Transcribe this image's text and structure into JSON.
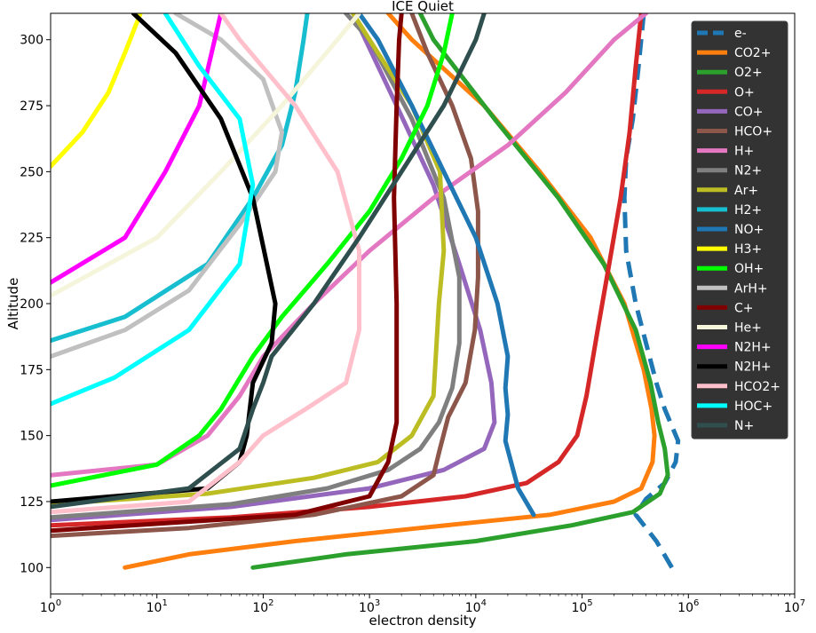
{
  "chart_data": {
    "type": "line",
    "title": "ICE Quiet",
    "xlabel": "electron density",
    "ylabel": "Altitude",
    "xscale": "log",
    "xlim": [
      1,
      10000000
    ],
    "ylim": [
      90,
      310
    ],
    "x_ticks": [
      {
        "base": "10",
        "exp": "0",
        "value": 1
      },
      {
        "base": "10",
        "exp": "1",
        "value": 10
      },
      {
        "base": "10",
        "exp": "2",
        "value": 100
      },
      {
        "base": "10",
        "exp": "3",
        "value": 1000
      },
      {
        "base": "10",
        "exp": "4",
        "value": 10000
      },
      {
        "base": "10",
        "exp": "5",
        "value": 100000
      },
      {
        "base": "10",
        "exp": "6",
        "value": 1000000
      },
      {
        "base": "10",
        "exp": "7",
        "value": 10000000
      }
    ],
    "y_ticks": [
      {
        "label": "100",
        "value": 100
      },
      {
        "label": "125",
        "value": 125
      },
      {
        "label": "150",
        "value": 150
      },
      {
        "label": "175",
        "value": 175
      },
      {
        "label": "200",
        "value": 200
      },
      {
        "label": "225",
        "value": 225
      },
      {
        "label": "250",
        "value": 250
      },
      {
        "label": "275",
        "value": 275
      },
      {
        "label": "300",
        "value": 300
      }
    ],
    "legend_position": "top-right",
    "grid": false,
    "series": [
      {
        "name": "e-",
        "color": "#1f77b4",
        "dashed": true,
        "points": [
          [
            700000.0,
            100
          ],
          [
            500000.0,
            110
          ],
          [
            320000.0,
            120
          ],
          [
            400000.0,
            126
          ],
          [
            600000.0,
            132
          ],
          [
            760000.0,
            140
          ],
          [
            800000.0,
            148
          ],
          [
            600000.0,
            160
          ],
          [
            500000.0,
            170
          ],
          [
            400000.0,
            185
          ],
          [
            320000.0,
            200
          ],
          [
            260000.0,
            220
          ],
          [
            250000.0,
            240
          ],
          [
            260000.0,
            255
          ],
          [
            300000.0,
            270
          ],
          [
            340000.0,
            290
          ],
          [
            380000.0,
            310
          ]
        ]
      },
      {
        "name": "CO2+",
        "color": "#ff7f0e",
        "points": [
          [
            5,
            100
          ],
          [
            20,
            105
          ],
          [
            200,
            110
          ],
          [
            3000,
            115
          ],
          [
            50000.0,
            120
          ],
          [
            200000.0,
            125
          ],
          [
            360000.0,
            130
          ],
          [
            460000.0,
            140
          ],
          [
            480000.0,
            150
          ],
          [
            450000.0,
            160
          ],
          [
            380000.0,
            175
          ],
          [
            250000.0,
            200
          ],
          [
            120000.0,
            225
          ],
          [
            40000.0,
            250
          ],
          [
            12000.0,
            275
          ],
          [
            2500,
            300
          ],
          [
            1500,
            310
          ]
        ]
      },
      {
        "name": "O2+",
        "color": "#2ca02c",
        "points": [
          [
            80,
            100
          ],
          [
            600,
            105
          ],
          [
            10000.0,
            110
          ],
          [
            80000.0,
            116
          ],
          [
            300000.0,
            121
          ],
          [
            540000.0,
            128
          ],
          [
            640000.0,
            135
          ],
          [
            600000.0,
            145
          ],
          [
            520000.0,
            155
          ],
          [
            440000.0,
            170
          ],
          [
            320000.0,
            190
          ],
          [
            160000.0,
            215
          ],
          [
            60000.0,
            240
          ],
          [
            15000.0,
            270
          ],
          [
            4000,
            300
          ],
          [
            3000,
            310
          ]
        ]
      },
      {
        "name": "O+",
        "color": "#d62728",
        "points": [
          [
            1,
            116
          ],
          [
            50,
            119
          ],
          [
            1000,
            123
          ],
          [
            8000,
            127
          ],
          [
            30000.0,
            132
          ],
          [
            60000.0,
            140
          ],
          [
            90000.0,
            150
          ],
          [
            110000.0,
            165
          ],
          [
            140000.0,
            190
          ],
          [
            180000.0,
            215
          ],
          [
            230000.0,
            240
          ],
          [
            280000.0,
            265
          ],
          [
            320000.0,
            290
          ],
          [
            360000.0,
            310
          ]
        ]
      },
      {
        "name": "CO+",
        "color": "#9467bd",
        "points": [
          [
            1,
            118
          ],
          [
            50,
            123
          ],
          [
            1000,
            130
          ],
          [
            5000,
            137
          ],
          [
            12000.0,
            145
          ],
          [
            15000.0,
            155
          ],
          [
            14000.0,
            170
          ],
          [
            11000.0,
            190
          ],
          [
            7000,
            215
          ],
          [
            4000,
            245
          ],
          [
            1800,
            275
          ],
          [
            700,
            310
          ]
        ]
      },
      {
        "name": "HCO+",
        "color": "#8c564b",
        "points": [
          [
            1,
            112
          ],
          [
            20,
            115
          ],
          [
            300,
            120
          ],
          [
            2000,
            127
          ],
          [
            4000,
            135
          ],
          [
            4600,
            145
          ],
          [
            5500,
            157
          ],
          [
            8000,
            170
          ],
          [
            9800,
            190
          ],
          [
            10500.0,
            210
          ],
          [
            10500.0,
            235
          ],
          [
            9000,
            255
          ],
          [
            6000,
            275
          ],
          [
            3500,
            295
          ],
          [
            2500,
            310
          ]
        ]
      },
      {
        "name": "H+",
        "color": "#e377c2",
        "points": [
          [
            1,
            135
          ],
          [
            10,
            139
          ],
          [
            30,
            150
          ],
          [
            60,
            165
          ],
          [
            100,
            180
          ],
          [
            300,
            200
          ],
          [
            1000,
            220
          ],
          [
            4000,
            240
          ],
          [
            20000.0,
            260
          ],
          [
            70000.0,
            280
          ],
          [
            200000.0,
            300
          ],
          [
            400000.0,
            310
          ]
        ]
      },
      {
        "name": "N2+",
        "color": "#7f7f7f",
        "points": [
          [
            1,
            119
          ],
          [
            50,
            124
          ],
          [
            400,
            130
          ],
          [
            1500,
            137
          ],
          [
            3000,
            145
          ],
          [
            4500,
            155
          ],
          [
            6000,
            168
          ],
          [
            7000,
            185
          ],
          [
            7000,
            210
          ],
          [
            5000,
            240
          ],
          [
            2500,
            270
          ],
          [
            1000,
            300
          ],
          [
            600,
            310
          ]
        ]
      },
      {
        "name": "Ar+",
        "color": "#bcbd22",
        "points": [
          [
            1,
            124
          ],
          [
            30,
            128
          ],
          [
            300,
            134
          ],
          [
            1200,
            140
          ],
          [
            2500,
            150
          ],
          [
            4000,
            165
          ],
          [
            4200,
            180
          ],
          [
            4500,
            200
          ],
          [
            5000,
            220
          ],
          [
            4600,
            250
          ],
          [
            2500,
            275
          ],
          [
            1000,
            300
          ],
          [
            700,
            310
          ]
        ]
      },
      {
        "name": "H2+",
        "color": "#17becf",
        "points": [
          [
            1,
            186
          ],
          [
            5,
            195
          ],
          [
            30,
            215
          ],
          [
            80,
            240
          ],
          [
            150,
            260
          ],
          [
            200,
            280
          ],
          [
            240,
            300
          ],
          [
            260,
            310
          ]
        ]
      },
      {
        "name": "NO+",
        "color": "#1f77b4",
        "points": [
          [
            35000.0,
            120
          ],
          [
            25000.0,
            130
          ],
          [
            19000.0,
            148
          ],
          [
            20000.0,
            158
          ],
          [
            19000.0,
            168
          ],
          [
            20000.0,
            180
          ],
          [
            16000.0,
            200
          ],
          [
            10000.0,
            225
          ],
          [
            5000,
            250
          ],
          [
            2500,
            275
          ],
          [
            1200,
            300
          ],
          [
            800,
            310
          ]
        ]
      },
      {
        "name": "H3+",
        "color": "#ffff00",
        "points": [
          [
            1,
            252
          ],
          [
            2,
            265
          ],
          [
            3.5,
            280
          ],
          [
            5,
            295
          ],
          [
            7,
            310
          ]
        ]
      },
      {
        "name": "OH+",
        "color": "#00ff00",
        "points": [
          [
            1,
            131
          ],
          [
            10,
            139
          ],
          [
            25,
            150
          ],
          [
            40,
            160
          ],
          [
            80,
            180
          ],
          [
            150,
            195
          ],
          [
            400,
            215
          ],
          [
            1000,
            235
          ],
          [
            2000,
            255
          ],
          [
            3500,
            275
          ],
          [
            5000,
            295
          ],
          [
            6000,
            310
          ]
        ]
      },
      {
        "name": "ArH+",
        "color": "#c0c0c0",
        "points": [
          [
            1,
            180
          ],
          [
            5,
            190
          ],
          [
            20,
            205
          ],
          [
            60,
            230
          ],
          [
            130,
            250
          ],
          [
            150,
            265
          ],
          [
            100,
            285
          ],
          [
            40,
            300
          ],
          [
            15,
            310
          ]
        ]
      },
      {
        "name": "C+",
        "color": "#800000",
        "points": [
          [
            1,
            114
          ],
          [
            200,
            120
          ],
          [
            1000,
            127
          ],
          [
            1500,
            140
          ],
          [
            1800,
            155
          ],
          [
            1800,
            170
          ],
          [
            1800,
            200
          ],
          [
            1700,
            240
          ],
          [
            1800,
            275
          ],
          [
            1900,
            300
          ],
          [
            2000,
            310
          ]
        ]
      },
      {
        "name": "He+",
        "color": "#f5f5dc",
        "points": [
          [
            1,
            203
          ],
          [
            10,
            225
          ],
          [
            40,
            250
          ],
          [
            150,
            275
          ],
          [
            500,
            300
          ],
          [
            800,
            310
          ]
        ]
      },
      {
        "name": "N2H+",
        "color": "#ff00ff",
        "points": [
          [
            1,
            208
          ],
          [
            5,
            225
          ],
          [
            12,
            250
          ],
          [
            25,
            275
          ],
          [
            35,
            300
          ],
          [
            40,
            310
          ]
        ]
      },
      {
        "name": "N2H+",
        "color": "#000000",
        "points": [
          [
            1,
            125
          ],
          [
            30,
            130
          ],
          [
            60,
            140
          ],
          [
            70,
            150
          ],
          [
            80,
            170
          ],
          [
            120,
            185
          ],
          [
            130,
            200
          ],
          [
            80,
            240
          ],
          [
            40,
            270
          ],
          [
            15,
            295
          ],
          [
            6,
            310
          ]
        ]
      },
      {
        "name": "HCO2+",
        "color": "#ffc0cb",
        "points": [
          [
            1,
            121
          ],
          [
            20,
            125
          ],
          [
            60,
            140
          ],
          [
            100,
            150
          ],
          [
            250,
            160
          ],
          [
            600,
            170
          ],
          [
            800,
            190
          ],
          [
            800,
            220
          ],
          [
            500,
            250
          ],
          [
            200,
            275
          ],
          [
            60,
            300
          ],
          [
            40,
            310
          ]
        ]
      },
      {
        "name": "HOC+",
        "color": "#00ffff",
        "points": [
          [
            1,
            162
          ],
          [
            4,
            172
          ],
          [
            20,
            190
          ],
          [
            60,
            215
          ],
          [
            80,
            245
          ],
          [
            60,
            270
          ],
          [
            25,
            290
          ],
          [
            12,
            310
          ]
        ]
      },
      {
        "name": "N+",
        "color": "#2f4f4f",
        "points": [
          [
            1,
            123
          ],
          [
            20,
            130
          ],
          [
            60,
            145
          ],
          [
            80,
            160
          ],
          [
            100,
            170
          ],
          [
            120,
            180
          ],
          [
            300,
            200
          ],
          [
            800,
            225
          ],
          [
            2000,
            250
          ],
          [
            5000,
            275
          ],
          [
            10000.0,
            300
          ],
          [
            12000.0,
            310
          ]
        ]
      }
    ]
  }
}
